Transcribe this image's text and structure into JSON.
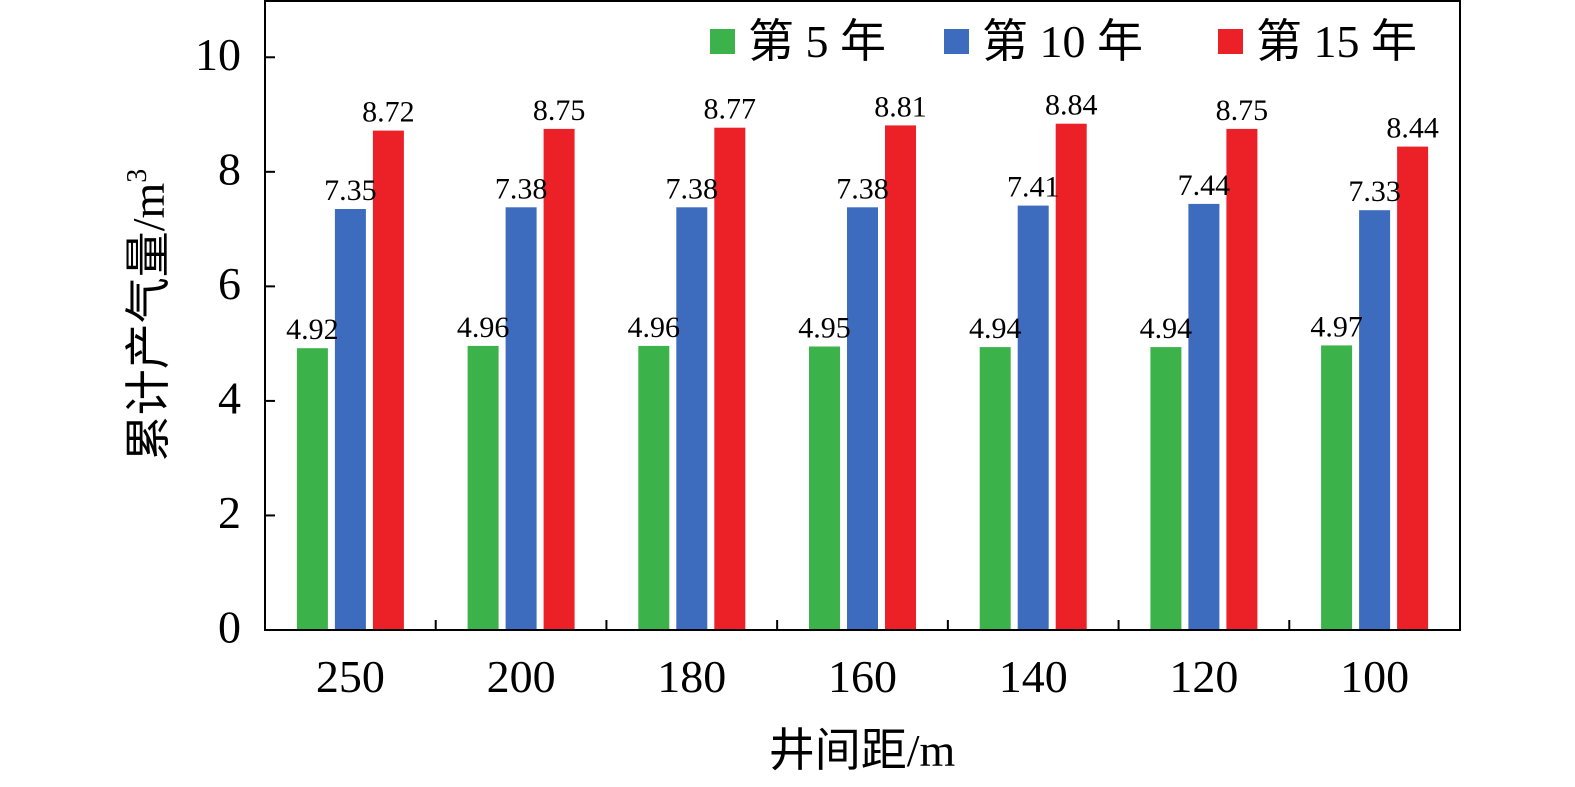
{
  "chart_data": {
    "type": "bar",
    "title": "",
    "xlabel": "井间距/m",
    "ylabel_main": "累计产气量/m",
    "ylabel_sup": "3",
    "categories": [
      "250",
      "200",
      "180",
      "160",
      "140",
      "120",
      "100"
    ],
    "series": [
      {
        "name": "第 5 年",
        "color": "#3cb34a",
        "values": [
          4.92,
          4.96,
          4.96,
          4.95,
          4.94,
          4.94,
          4.97
        ]
      },
      {
        "name": "第 10 年",
        "color": "#3d6cbf",
        "values": [
          7.35,
          7.38,
          7.38,
          7.38,
          7.41,
          7.44,
          7.33
        ]
      },
      {
        "name": "第 15 年",
        "color": "#ec2127",
        "values": [
          8.72,
          8.75,
          8.77,
          8.81,
          8.84,
          8.75,
          8.44
        ]
      }
    ],
    "ylim": [
      0,
      10
    ],
    "yticks": [
      0,
      2,
      4,
      6,
      8,
      10
    ],
    "grid": false,
    "legend_position": "top-right"
  }
}
